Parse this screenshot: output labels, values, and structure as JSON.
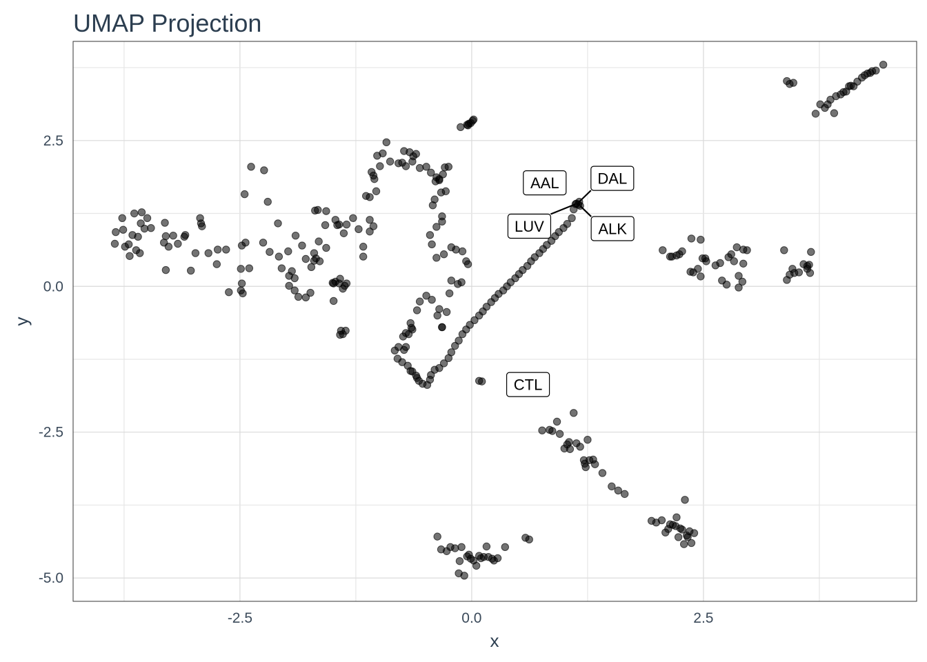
{
  "chart_data": {
    "type": "scatter",
    "title": "UMAP Projection",
    "xlabel": "x",
    "ylabel": "y",
    "xlim": [
      -4.3,
      4.8
    ],
    "ylim": [
      -5.4,
      4.2
    ],
    "x_ticks": [
      -2.5,
      0.0,
      2.5
    ],
    "x_tick_labels": [
      "-2.5",
      "0.0",
      "2.5"
    ],
    "y_ticks": [
      -5.0,
      -2.5,
      0.0,
      2.5
    ],
    "y_tick_labels": [
      "-5.0",
      "-2.5",
      "0.0",
      "2.5"
    ],
    "grid": true,
    "point_color": "#000000",
    "labels": [
      {
        "text": "AAL",
        "x": 1.13,
        "y": 1.42
      },
      {
        "text": "DAL",
        "x": 1.16,
        "y": 1.45
      },
      {
        "text": "LUV",
        "x": 1.12,
        "y": 1.41
      },
      {
        "text": "ALK",
        "x": 1.17,
        "y": 1.38
      },
      {
        "text": "CTL",
        "x": 0.95,
        "y": -2.05
      }
    ],
    "points": [
      [
        -3.84,
        0.93
      ],
      [
        -3.76,
        0.97
      ],
      [
        -3.74,
        0.68
      ],
      [
        -3.7,
        0.72
      ],
      [
        -3.66,
        0.88
      ],
      [
        -3.62,
        0.62
      ],
      [
        -3.58,
        0.57
      ],
      [
        -3.64,
        1.25
      ],
      [
        -3.56,
        1.27
      ],
      [
        -3.5,
        1.17
      ],
      [
        -3.77,
        1.17
      ],
      [
        -3.85,
        0.73
      ],
      [
        -3.69,
        0.52
      ],
      [
        -3.6,
        0.85
      ],
      [
        -3.57,
        1.08
      ],
      [
        -3.53,
        0.99
      ],
      [
        -3.46,
        1.0
      ],
      [
        -3.31,
        1.09
      ],
      [
        -3.32,
        0.75
      ],
      [
        -3.3,
        0.86
      ],
      [
        -3.27,
        0.68
      ],
      [
        -3.22,
        0.87
      ],
      [
        -3.17,
        0.73
      ],
      [
        -3.09,
        0.88
      ],
      [
        -3.1,
        0.85
      ],
      [
        -3.3,
        0.28
      ],
      [
        -3.03,
        0.27
      ],
      [
        -2.98,
        0.57
      ],
      [
        -2.93,
        1.17
      ],
      [
        -2.92,
        1.08
      ],
      [
        -2.91,
        1.03
      ],
      [
        -2.84,
        0.57
      ],
      [
        -2.74,
        0.63
      ],
      [
        -2.65,
        0.63
      ],
      [
        -2.75,
        0.38
      ],
      [
        -2.62,
        -0.1
      ],
      [
        -2.47,
        -0.12
      ],
      [
        -2.49,
        -0.07
      ],
      [
        -2.48,
        0.05
      ],
      [
        -2.49,
        0.3
      ],
      [
        -2.4,
        0.31
      ],
      [
        -2.44,
        0.75
      ],
      [
        -2.48,
        0.7
      ],
      [
        -2.45,
        1.58
      ],
      [
        -2.38,
        2.05
      ],
      [
        -2.24,
        1.99
      ],
      [
        -2.2,
        1.45
      ],
      [
        -2.25,
        0.75
      ],
      [
        -2.18,
        0.59
      ],
      [
        -2.09,
        1.08
      ],
      [
        -2.08,
        0.51
      ],
      [
        -2.05,
        0.31
      ],
      [
        -1.97,
        0.18
      ],
      [
        -1.98,
        0.6
      ],
      [
        -1.94,
        0.26
      ],
      [
        -1.9,
        0.87
      ],
      [
        -1.83,
        0.7
      ],
      [
        -1.79,
        0.47
      ],
      [
        -1.91,
        0.14
      ],
      [
        -1.97,
        0.01
      ],
      [
        -1.91,
        -0.07
      ],
      [
        -1.87,
        -0.18
      ],
      [
        -1.79,
        -0.19
      ],
      [
        -1.74,
        -0.11
      ],
      [
        -1.7,
        0.57
      ],
      [
        -1.73,
        0.33
      ],
      [
        -1.7,
        0.44
      ],
      [
        -1.68,
        0.48
      ],
      [
        -1.64,
        0.43
      ],
      [
        -1.65,
        0.77
      ],
      [
        -1.57,
        0.66
      ],
      [
        -1.58,
        1.05
      ],
      [
        -1.69,
        1.3
      ],
      [
        -1.66,
        1.31
      ],
      [
        -1.57,
        1.29
      ],
      [
        -1.49,
        0.05
      ],
      [
        -1.5,
        0.06
      ],
      [
        -1.43,
        0.05
      ],
      [
        -1.47,
        0.08
      ],
      [
        -1.42,
        0.13
      ],
      [
        -1.37,
        0.01
      ],
      [
        -1.35,
        0.05
      ],
      [
        -1.39,
        -0.04
      ],
      [
        -1.49,
        -0.25
      ],
      [
        -1.41,
        -0.76
      ],
      [
        -1.42,
        -0.83
      ],
      [
        -1.39,
        -0.82
      ],
      [
        -1.36,
        -0.76
      ],
      [
        -1.47,
        1.14
      ],
      [
        -1.43,
        1.06
      ],
      [
        -1.45,
        1.05
      ],
      [
        -1.38,
        0.91
      ],
      [
        -1.35,
        1.06
      ],
      [
        -1.28,
        1.17
      ],
      [
        -1.22,
        0.98
      ],
      [
        -1.17,
        0.51
      ],
      [
        -1.17,
        0.68
      ],
      [
        -1.1,
        0.94
      ],
      [
        -1.06,
        1.03
      ],
      [
        -1.1,
        1.14
      ],
      [
        -1.14,
        1.55
      ],
      [
        -1.1,
        1.53
      ],
      [
        -1.03,
        1.63
      ],
      [
        -1.08,
        1.96
      ],
      [
        -1.06,
        1.9
      ],
      [
        -1.05,
        1.84
      ],
      [
        -0.99,
        2.06
      ],
      [
        -1.02,
        2.24
      ],
      [
        -0.96,
        2.28
      ],
      [
        -0.92,
        2.47
      ],
      [
        -0.88,
        2.14
      ],
      [
        -0.79,
        2.11
      ],
      [
        -0.75,
        2.12
      ],
      [
        -0.71,
        2.06
      ],
      [
        -0.73,
        2.32
      ],
      [
        -0.67,
        2.3
      ],
      [
        -0.63,
        2.23
      ],
      [
        -0.6,
        2.27
      ],
      [
        -0.64,
        2.14
      ],
      [
        -0.56,
        2.03
      ],
      [
        -0.49,
        2.05
      ],
      [
        -0.44,
        1.95
      ],
      [
        -0.38,
        1.87
      ],
      [
        -0.39,
        1.8
      ],
      [
        -0.35,
        1.84
      ],
      [
        -0.35,
        1.82
      ],
      [
        -0.31,
        1.92
      ],
      [
        -0.29,
        2.04
      ],
      [
        -0.25,
        2.05
      ],
      [
        -0.28,
        1.63
      ],
      [
        -0.33,
        1.61
      ],
      [
        -0.4,
        1.49
      ],
      [
        -0.42,
        1.39
      ],
      [
        -0.32,
        1.2
      ],
      [
        -0.32,
        1.11
      ],
      [
        -0.38,
        1.02
      ],
      [
        -0.45,
        0.88
      ],
      [
        -0.43,
        0.72
      ],
      [
        -0.38,
        0.49
      ],
      [
        -0.3,
        0.55
      ],
      [
        -0.22,
        0.67
      ],
      [
        -0.17,
        0.63
      ],
      [
        -0.1,
        0.6
      ],
      [
        -0.06,
        0.43
      ],
      [
        -0.04,
        0.38
      ],
      [
        -0.11,
        0.07
      ],
      [
        -0.15,
        0.04
      ],
      [
        -0.22,
        0.1
      ],
      [
        -0.24,
        -0.12
      ],
      [
        -0.27,
        -0.44
      ],
      [
        -0.32,
        -0.7
      ],
      [
        -0.32,
        -0.7
      ],
      [
        -0.37,
        -0.5
      ],
      [
        -0.35,
        -0.39
      ],
      [
        -0.43,
        -0.23
      ],
      [
        -0.49,
        -0.16
      ],
      [
        -0.56,
        -0.26
      ],
      [
        -0.59,
        -0.41
      ],
      [
        -0.66,
        -0.63
      ],
      [
        -0.65,
        -0.71
      ],
      [
        -0.64,
        -0.74
      ],
      [
        -0.68,
        -0.82
      ],
      [
        -0.71,
        -0.8
      ],
      [
        -0.74,
        -0.86
      ],
      [
        -0.71,
        -1.04
      ],
      [
        -0.73,
        -1.09
      ],
      [
        -0.79,
        -1.04
      ],
      [
        -0.83,
        -1.1
      ],
      [
        -0.8,
        -1.24
      ],
      [
        -0.75,
        -1.3
      ],
      [
        -0.69,
        -1.36
      ],
      [
        -0.66,
        -1.45
      ],
      [
        -0.64,
        -1.46
      ],
      [
        -0.6,
        -1.53
      ],
      [
        -0.59,
        -1.57
      ],
      [
        -0.57,
        -1.62
      ],
      [
        -0.53,
        -1.67
      ],
      [
        -0.48,
        -1.69
      ],
      [
        -0.45,
        -1.6
      ],
      [
        -0.44,
        -1.52
      ],
      [
        -0.4,
        -1.43
      ],
      [
        -0.35,
        -1.4
      ],
      [
        -0.3,
        -1.32
      ],
      [
        -0.25,
        -1.23
      ],
      [
        -0.22,
        -1.13
      ],
      [
        -0.18,
        -1.02
      ],
      [
        -0.14,
        -0.93
      ],
      [
        -0.1,
        -0.82
      ],
      [
        -0.06,
        -0.74
      ],
      [
        -0.02,
        -0.66
      ],
      [
        0.03,
        -0.58
      ],
      [
        0.08,
        -0.5
      ],
      [
        0.12,
        -0.43
      ],
      [
        0.16,
        -0.35
      ],
      [
        0.21,
        -0.27
      ],
      [
        0.25,
        -0.2
      ],
      [
        0.29,
        -0.13
      ],
      [
        0.34,
        -0.07
      ],
      [
        0.38,
        0.0
      ],
      [
        0.42,
        0.07
      ],
      [
        0.47,
        0.14
      ],
      [
        0.51,
        0.21
      ],
      [
        0.55,
        0.28
      ],
      [
        0.6,
        0.35
      ],
      [
        0.64,
        0.43
      ],
      [
        0.68,
        0.5
      ],
      [
        0.73,
        0.57
      ],
      [
        0.77,
        0.64
      ],
      [
        0.81,
        0.71
      ],
      [
        0.86,
        0.78
      ],
      [
        0.9,
        0.86
      ],
      [
        0.94,
        0.93
      ],
      [
        0.99,
        1.0
      ],
      [
        1.03,
        1.07
      ],
      [
        1.08,
        1.17
      ],
      [
        1.1,
        1.32
      ],
      [
        1.12,
        1.41
      ],
      [
        1.13,
        1.42
      ],
      [
        1.16,
        1.45
      ],
      [
        1.17,
        1.38
      ],
      [
        1.15,
        1.4
      ],
      [
        -0.12,
        2.73
      ],
      [
        -0.05,
        2.77
      ],
      [
        -0.03,
        2.79
      ],
      [
        -0.01,
        2.8
      ],
      [
        0.01,
        2.84
      ],
      [
        0.02,
        2.86
      ],
      [
        -0.04,
        2.76
      ],
      [
        3.4,
        3.52
      ],
      [
        3.43,
        3.47
      ],
      [
        3.47,
        3.49
      ],
      [
        3.71,
        2.96
      ],
      [
        3.76,
        3.12
      ],
      [
        3.81,
        3.06
      ],
      [
        3.84,
        3.12
      ],
      [
        3.87,
        3.2
      ],
      [
        3.91,
        2.97
      ],
      [
        3.93,
        3.26
      ],
      [
        3.98,
        3.29
      ],
      [
        4.01,
        3.33
      ],
      [
        4.04,
        3.34
      ],
      [
        4.07,
        3.43
      ],
      [
        4.09,
        3.44
      ],
      [
        4.12,
        3.43
      ],
      [
        4.16,
        3.51
      ],
      [
        4.21,
        3.58
      ],
      [
        4.24,
        3.62
      ],
      [
        4.27,
        3.65
      ],
      [
        4.3,
        3.66
      ],
      [
        4.32,
        3.69
      ],
      [
        4.36,
        3.7
      ],
      [
        4.44,
        3.8
      ],
      [
        2.06,
        0.62
      ],
      [
        2.14,
        0.51
      ],
      [
        2.16,
        0.51
      ],
      [
        2.21,
        0.53
      ],
      [
        2.24,
        0.55
      ],
      [
        2.27,
        0.6
      ],
      [
        2.36,
        0.25
      ],
      [
        2.39,
        0.24
      ],
      [
        2.44,
        0.3
      ],
      [
        2.47,
        0.17
      ],
      [
        2.37,
        0.82
      ],
      [
        2.47,
        0.8
      ],
      [
        2.49,
        0.48
      ],
      [
        2.53,
        0.43
      ],
      [
        2.52,
        0.48
      ],
      [
        2.63,
        0.36
      ],
      [
        2.68,
        0.4
      ],
      [
        2.7,
        0.1
      ],
      [
        2.75,
        0.03
      ],
      [
        2.77,
        0.5
      ],
      [
        2.8,
        0.55
      ],
      [
        2.83,
        0.43
      ],
      [
        2.88,
        -0.02
      ],
      [
        2.88,
        0.18
      ],
      [
        2.92,
        0.08
      ],
      [
        2.93,
        0.39
      ],
      [
        2.86,
        0.67
      ],
      [
        2.93,
        0.63
      ],
      [
        2.97,
        0.62
      ],
      [
        3.37,
        0.62
      ],
      [
        3.4,
        0.11
      ],
      [
        3.43,
        0.2
      ],
      [
        3.46,
        0.3
      ],
      [
        3.48,
        0.23
      ],
      [
        3.53,
        0.24
      ],
      [
        3.58,
        0.38
      ],
      [
        3.62,
        0.35
      ],
      [
        3.65,
        0.23
      ],
      [
        3.66,
        0.59
      ],
      [
        3.64,
        0.37
      ],
      [
        3.62,
        0.3
      ],
      [
        0.08,
        -1.62
      ],
      [
        0.11,
        -1.63
      ],
      [
        0.76,
        -2.47
      ],
      [
        0.84,
        -2.46
      ],
      [
        0.87,
        -2.48
      ],
      [
        0.92,
        -2.32
      ],
      [
        0.95,
        -2.53
      ],
      [
        1.0,
        -2.78
      ],
      [
        1.03,
        -2.71
      ],
      [
        1.05,
        -2.67
      ],
      [
        1.06,
        -2.79
      ],
      [
        1.1,
        -2.17
      ],
      [
        1.13,
        -2.69
      ],
      [
        1.17,
        -2.75
      ],
      [
        1.21,
        -2.98
      ],
      [
        1.22,
        -3.04
      ],
      [
        1.23,
        -3.1
      ],
      [
        1.25,
        -2.63
      ],
      [
        1.27,
        -2.98
      ],
      [
        1.31,
        -2.97
      ],
      [
        1.33,
        -3.05
      ],
      [
        1.41,
        -3.2
      ],
      [
        1.51,
        -3.43
      ],
      [
        1.58,
        -3.5
      ],
      [
        1.65,
        -3.56
      ],
      [
        1.94,
        -4.02
      ],
      [
        1.99,
        -4.05
      ],
      [
        2.05,
        -4.01
      ],
      [
        2.09,
        -4.22
      ],
      [
        2.12,
        -4.16
      ],
      [
        2.14,
        -4.08
      ],
      [
        2.17,
        -4.09
      ],
      [
        2.2,
        -4.11
      ],
      [
        2.21,
        -3.96
      ],
      [
        2.23,
        -4.3
      ],
      [
        2.25,
        -4.15
      ],
      [
        2.27,
        -4.17
      ],
      [
        2.29,
        -4.42
      ],
      [
        2.32,
        -4.27
      ],
      [
        2.33,
        -4.3
      ],
      [
        2.35,
        -4.2
      ],
      [
        2.37,
        -4.4
      ],
      [
        2.4,
        -4.23
      ],
      [
        2.3,
        -3.66
      ],
      [
        -0.37,
        -4.29
      ],
      [
        -0.33,
        -4.51
      ],
      [
        -0.27,
        -4.54
      ],
      [
        -0.23,
        -4.47
      ],
      [
        -0.18,
        -4.49
      ],
      [
        -0.14,
        -4.92
      ],
      [
        -0.13,
        -4.71
      ],
      [
        -0.11,
        -4.47
      ],
      [
        -0.08,
        -4.96
      ],
      [
        -0.05,
        -4.63
      ],
      [
        -0.03,
        -4.6
      ],
      [
        -0.01,
        -4.67
      ],
      [
        0.02,
        -4.7
      ],
      [
        0.05,
        -4.79
      ],
      [
        0.08,
        -4.62
      ],
      [
        0.1,
        -4.66
      ],
      [
        0.13,
        -4.64
      ],
      [
        0.16,
        -4.46
      ],
      [
        0.18,
        -4.64
      ],
      [
        0.22,
        -4.67
      ],
      [
        0.24,
        -4.7
      ],
      [
        0.28,
        -4.66
      ],
      [
        0.36,
        -4.47
      ],
      [
        0.58,
        -4.31
      ],
      [
        0.62,
        -4.34
      ]
    ]
  }
}
